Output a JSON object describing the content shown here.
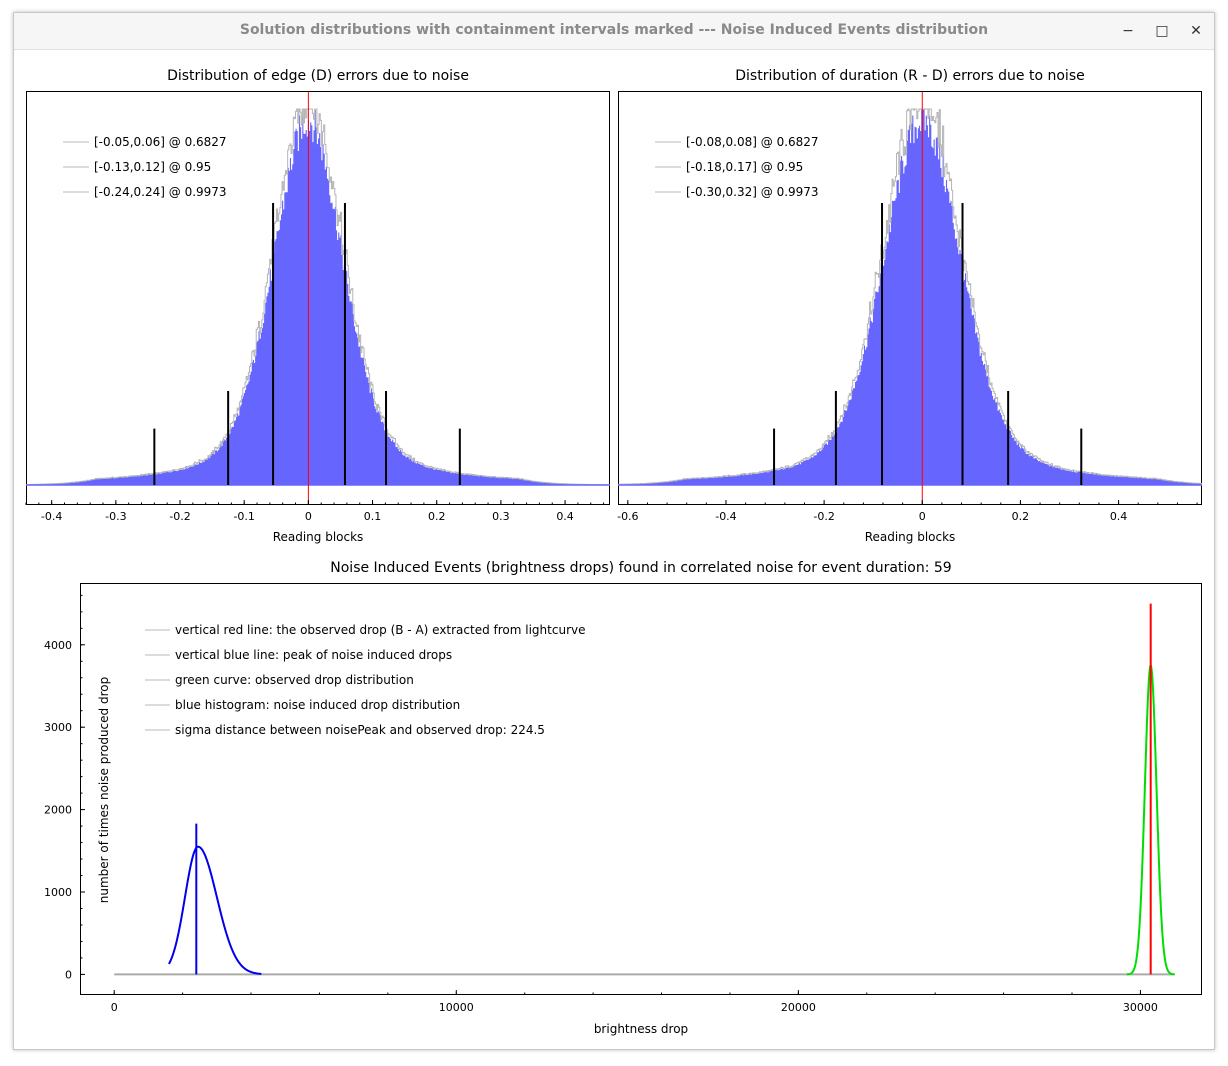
{
  "window": {
    "title": "Solution distributions with containment intervals marked --- Noise Induced Events distribution",
    "minimize_glyph": "−",
    "maximize_glyph": "□",
    "close_glyph": "✕"
  },
  "colors": {
    "histogram": "#6666ff",
    "histogram_outline": "#b4b4b4",
    "observed": "#ff0000",
    "noise": "#0000ee",
    "green_curve": "#00dd00",
    "interval_bar": "#000000"
  },
  "chart_data": [
    {
      "type": "bar",
      "title": "Distribution of edge (D) errors due to noise",
      "xlabel": "Reading blocks",
      "ylabel": "",
      "xlim": [
        -0.44,
        0.47
      ],
      "xticks": [
        -0.4,
        -0.3,
        -0.2,
        -0.1,
        0,
        0.1,
        0.2,
        0.3,
        0.4
      ],
      "xtick_labels": [
        "-0.4",
        "-0.3",
        "-0.2",
        "-0.1",
        "0",
        "0.1",
        "0.2",
        "0.3",
        "0.4"
      ],
      "distribution": {
        "center": 0.0,
        "sigma": 0.055,
        "peak": 1.0
      },
      "observed_line_x": 0.0,
      "legend": [
        "[-0.05,0.06] @ 0.6827",
        "[-0.13,0.12] @ 0.95",
        "[-0.24,0.24] @ 0.9973"
      ],
      "intervals": [
        {
          "low": -0.055,
          "high": 0.057,
          "level": 0.6827,
          "height": 0.75
        },
        {
          "low": -0.125,
          "high": 0.121,
          "level": 0.95,
          "height": 0.25
        },
        {
          "low": -0.24,
          "high": 0.236,
          "level": 0.9973,
          "height": 0.15
        }
      ],
      "legend_position": "top-left",
      "grid": false
    },
    {
      "type": "bar",
      "title": "Distribution of duration (R - D) errors due to noise",
      "xlabel": "Reading blocks",
      "ylabel": "",
      "xlim": [
        -0.62,
        0.57
      ],
      "xticks": [
        -0.6,
        -0.4,
        -0.2,
        0,
        0.2,
        0.4
      ],
      "xtick_labels": [
        "-0.6",
        "-0.4",
        "-0.2",
        "0",
        "0.2",
        "0.4"
      ],
      "distribution": {
        "center": 0.0,
        "sigma": 0.08,
        "peak": 1.0
      },
      "observed_line_x": 0.0,
      "legend": [
        "[-0.08,0.08] @ 0.6827",
        "[-0.18,0.17] @ 0.95",
        "[-0.30,0.32] @ 0.9973"
      ],
      "intervals": [
        {
          "low": -0.082,
          "high": 0.082,
          "level": 0.6827,
          "height": 0.75
        },
        {
          "low": -0.176,
          "high": 0.175,
          "level": 0.95,
          "height": 0.25
        },
        {
          "low": -0.302,
          "high": 0.324,
          "level": 0.9973,
          "height": 0.15
        }
      ],
      "legend_position": "top-left",
      "grid": false
    },
    {
      "type": "line",
      "title": "Noise Induced Events (brightness drops) found in correlated noise for event duration: 59",
      "xlabel": "brightness drop",
      "ylabel": "number of times noise produced drop",
      "xlim": [
        -1000,
        31800
      ],
      "ylim": [
        -250,
        4750
      ],
      "xticks": [
        0,
        10000,
        20000,
        30000
      ],
      "xtick_labels": [
        "0",
        "10000",
        "20000",
        "30000"
      ],
      "yticks": [
        0,
        1000,
        2000,
        3000,
        4000
      ],
      "ytick_labels": [
        "0",
        "1000",
        "2000",
        "3000",
        "4000"
      ],
      "noise_peak_x": 2400,
      "noise_peak_line_top": 1830,
      "noise_hist": {
        "peak_x": 2450,
        "peak_y": 1550,
        "sigma_left": 380,
        "sigma_right": 550,
        "x_start": 1600,
        "x_end": 4300
      },
      "observed_drop_x": 30300,
      "observed_line_top": 4500,
      "green_curve": {
        "peak_x": 30300,
        "peak_y": 3750,
        "sigma": 170,
        "x_start": 29600,
        "x_end": 31000
      },
      "baseline": {
        "x_start": 0,
        "x_end": 31000,
        "y": 0
      },
      "legend": [
        "vertical red line: the observed drop (B - A) extracted from lightcurve",
        "vertical blue line: peak of noise induced drops",
        "green curve: observed drop distribution",
        "blue histogram: noise induced drop distribution",
        "sigma distance between noisePeak and observed drop: 224.5"
      ],
      "legend_position": "top-left",
      "grid": false
    }
  ]
}
